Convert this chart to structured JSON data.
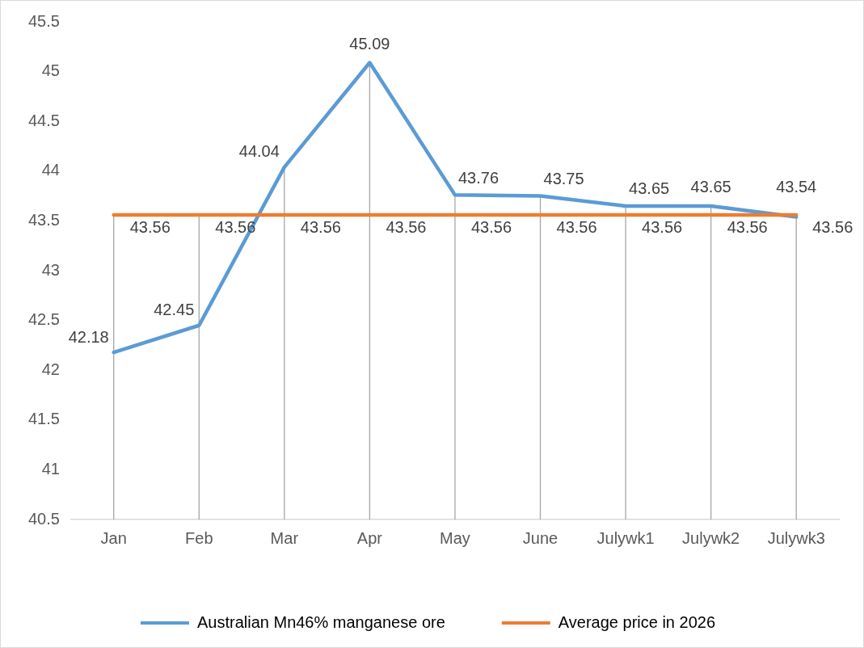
{
  "chart_data": {
    "type": "line",
    "categories": [
      "Jan",
      "Feb",
      "Mar",
      "Apr",
      "May",
      "June",
      "Julywk1",
      "Julywk2",
      "Julywk3"
    ],
    "series": [
      {
        "name": "Australian Mn46% manganese ore",
        "color": "#5b9bd5",
        "values": [
          42.18,
          42.45,
          44.04,
          45.09,
          43.76,
          43.75,
          43.65,
          43.65,
          43.54
        ]
      },
      {
        "name": "Average price in 2026",
        "color": "#ed7d31",
        "values": [
          43.56,
          43.56,
          43.56,
          43.56,
          43.56,
          43.56,
          43.56,
          43.56,
          43.56
        ]
      }
    ],
    "ylim": [
      40.5,
      45.5
    ],
    "yticks": [
      40.5,
      41,
      41.5,
      42,
      42.5,
      43,
      43.5,
      44,
      44.5,
      45,
      45.5
    ],
    "grid": "x",
    "legend": "bottom",
    "data_labels": true,
    "marker": "none",
    "line_style": "solid"
  }
}
